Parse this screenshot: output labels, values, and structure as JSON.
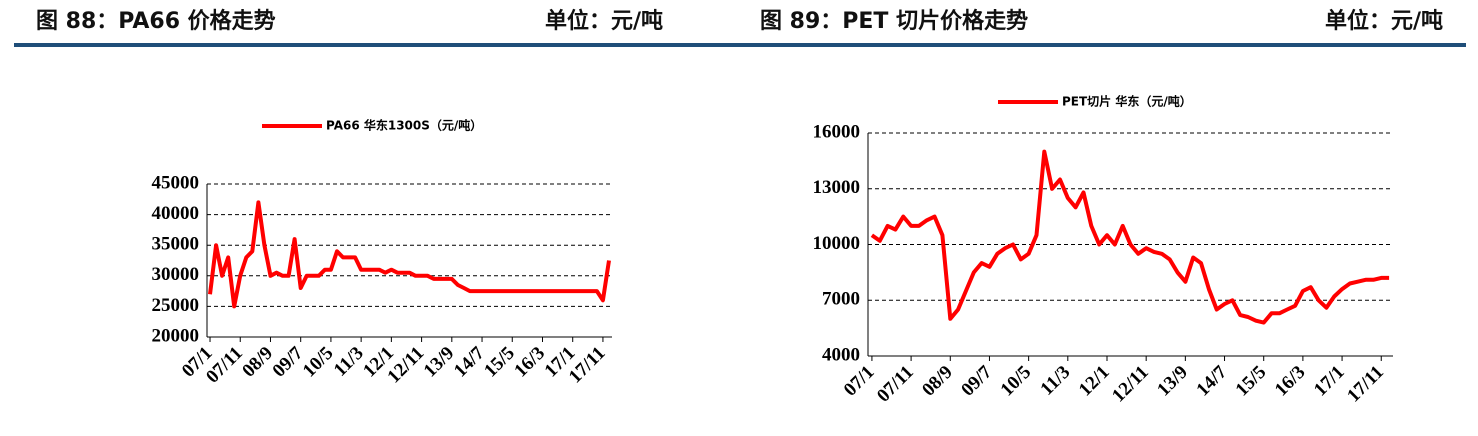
{
  "chart_data": [
    {
      "type": "line",
      "title": "图 88：PA66 价格走势",
      "unit": "单位：元/吨",
      "categories": [
        "07/1",
        null,
        null,
        null,
        null,
        "07/11",
        null,
        null,
        null,
        null,
        "08/9",
        null,
        null,
        null,
        null,
        "09/7",
        null,
        null,
        null,
        null,
        "10/5",
        null,
        null,
        null,
        null,
        "11/3",
        null,
        null,
        null,
        null,
        "12/1",
        null,
        null,
        null,
        null,
        "12/11",
        null,
        null,
        null,
        null,
        "13/9",
        null,
        null,
        null,
        null,
        "14/7",
        null,
        null,
        null,
        null,
        "15/5",
        null,
        null,
        null,
        null,
        "16/3",
        null,
        null,
        null,
        null,
        "17/1",
        null,
        null,
        null,
        null,
        "17/11",
        null
      ],
      "series": [
        {
          "name": "PA66 华东1300S（元/吨）",
          "color": "#ff0000",
          "values": [
            27000,
            35000,
            30000,
            33000,
            25000,
            30000,
            33000,
            34000,
            42000,
            35000,
            30000,
            30500,
            30000,
            30000,
            36000,
            28000,
            30000,
            30000,
            30000,
            31000,
            31000,
            34000,
            33000,
            33000,
            33000,
            31000,
            31000,
            31000,
            31000,
            30500,
            31000,
            30500,
            30500,
            30500,
            30000,
            30000,
            30000,
            29500,
            29500,
            29500,
            29500,
            28500,
            28000,
            27500,
            27500,
            27500,
            27500,
            27500,
            27500,
            27500,
            27500,
            27500,
            27500,
            27500,
            27500,
            27500,
            27500,
            27500,
            27500,
            27500,
            27500,
            27500,
            27500,
            27500,
            27500,
            26000,
            32500
          ]
        }
      ],
      "ylim": [
        20000,
        45000
      ],
      "yticks": [
        20000,
        25000,
        30000,
        35000,
        40000,
        45000
      ],
      "grid": true
    },
    {
      "type": "line",
      "title": "图 89：PET 切片价格走势",
      "unit": "单位：元/吨",
      "categories": [
        "07/1",
        null,
        null,
        null,
        null,
        "07/11",
        null,
        null,
        null,
        null,
        "08/9",
        null,
        null,
        null,
        null,
        "09/7",
        null,
        null,
        null,
        null,
        "10/5",
        null,
        null,
        null,
        null,
        "11/3",
        null,
        null,
        null,
        null,
        "12/1",
        null,
        null,
        null,
        null,
        "12/11",
        null,
        null,
        null,
        null,
        "13/9",
        null,
        null,
        null,
        null,
        "14/7",
        null,
        null,
        null,
        null,
        "15/5",
        null,
        null,
        null,
        null,
        "16/3",
        null,
        null,
        null,
        null,
        "17/1",
        null,
        null,
        null,
        null,
        "17/11",
        null
      ],
      "series": [
        {
          "name": "PET切片 华东（元/吨）",
          "color": "#ff0000",
          "values": [
            10500,
            10200,
            11000,
            10800,
            11500,
            11000,
            11000,
            11300,
            11500,
            10500,
            6000,
            6500,
            7500,
            8500,
            9000,
            8800,
            9500,
            9800,
            10000,
            9200,
            9500,
            10500,
            15000,
            13000,
            13500,
            12500,
            12000,
            12800,
            11000,
            10000,
            10500,
            10000,
            11000,
            10000,
            9500,
            9800,
            9600,
            9500,
            9200,
            8500,
            8000,
            9300,
            9000,
            7600,
            6500,
            6800,
            7000,
            6200,
            6100,
            5900,
            5800,
            6300,
            6300,
            6500,
            6700,
            7500,
            7700,
            7000,
            6600,
            7200,
            7600,
            7900,
            8000,
            8100,
            8100,
            8200,
            8200
          ]
        }
      ],
      "ylim": [
        4000,
        16000
      ],
      "yticks": [
        4000,
        7000,
        10000,
        13000,
        16000
      ],
      "grid": true
    }
  ]
}
